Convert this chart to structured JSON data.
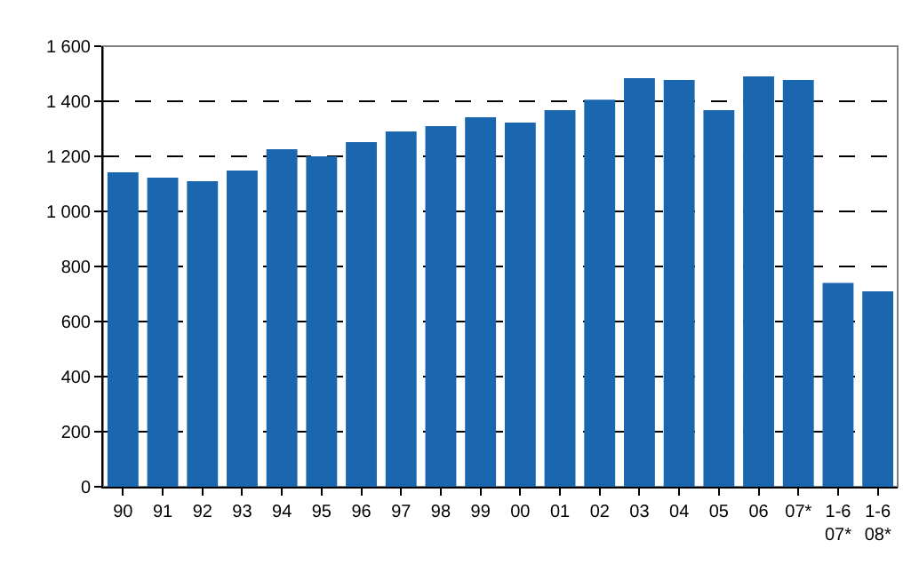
{
  "chart_data": {
    "type": "bar",
    "categories": [
      "90",
      "91",
      "92",
      "93",
      "94",
      "95",
      "96",
      "97",
      "98",
      "99",
      "00",
      "01",
      "02",
      "03",
      "04",
      "05",
      "06",
      "07*",
      "1-6\n07*",
      "1-6\n08*"
    ],
    "values": [
      1142,
      1123,
      1110,
      1148,
      1226,
      1200,
      1252,
      1290,
      1310,
      1342,
      1323,
      1368,
      1406,
      1484,
      1477,
      1368,
      1490,
      1477,
      740,
      710
    ],
    "color": "#1a67b0",
    "ylim": [
      0,
      1600
    ],
    "yticks": [
      {
        "value": 0,
        "label": "0"
      },
      {
        "value": 200,
        "label": "200"
      },
      {
        "value": 400,
        "label": "400"
      },
      {
        "value": 600,
        "label": "600"
      },
      {
        "value": 800,
        "label": "800"
      },
      {
        "value": 1000,
        "label": "1 000"
      },
      {
        "value": 1200,
        "label": "1 200"
      },
      {
        "value": 1400,
        "label": "1 400"
      },
      {
        "value": 1600,
        "label": "1 600"
      }
    ],
    "grid": "y"
  }
}
